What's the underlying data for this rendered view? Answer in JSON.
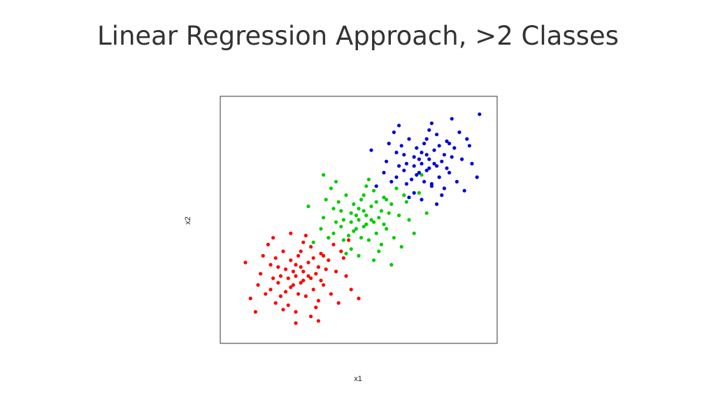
{
  "slide": {
    "title": "Linear Regression Approach, >2 Classes"
  },
  "chart_data": {
    "type": "scatter",
    "title": "",
    "xlabel": "x1",
    "ylabel": "x2",
    "xlim": [
      -3,
      8
    ],
    "ylim": [
      -3,
      8
    ],
    "grid": false,
    "legend": "none",
    "series": [
      {
        "color": "#ff0000",
        "points": [
          [
            0,
            0
          ],
          [
            0.3,
            -0.2
          ],
          [
            -0.4,
            0.3
          ],
          [
            0.5,
            0.6
          ],
          [
            -0.2,
            -0.5
          ],
          [
            0.8,
            0.1
          ],
          [
            -0.7,
            -0.3
          ],
          [
            0.1,
            0.9
          ],
          [
            1.1,
            -0.4
          ],
          [
            -1.0,
            0.5
          ],
          [
            0.4,
            -0.9
          ],
          [
            -0.5,
            1.1
          ],
          [
            1.3,
            0.7
          ],
          [
            -1.2,
            -0.8
          ],
          [
            0.6,
            1.3
          ],
          [
            0.9,
            -1.1
          ],
          [
            -0.3,
            -1.3
          ],
          [
            1.6,
            0.2
          ],
          [
            -1.4,
            0.1
          ],
          [
            0.2,
            0.4
          ],
          [
            -0.1,
            0.2
          ],
          [
            0.7,
            -0.6
          ],
          [
            -0.8,
            0.8
          ],
          [
            1.0,
            1.0
          ],
          [
            -0.6,
            -0.9
          ],
          [
            0.3,
            1.5
          ],
          [
            1.4,
            -0.8
          ],
          [
            -1.5,
            -0.4
          ],
          [
            0.0,
            -1.6
          ],
          [
            1.8,
            1.1
          ],
          [
            -1.1,
            1.4
          ],
          [
            0.5,
            0.0
          ],
          [
            -0.2,
            0.7
          ],
          [
            0.9,
            0.4
          ],
          [
            -0.9,
            -0.1
          ],
          [
            0.2,
            -0.3
          ],
          [
            1.2,
            0.3
          ],
          [
            -0.4,
            -0.7
          ],
          [
            0.6,
            -0.1
          ],
          [
            -0.7,
            0.4
          ],
          [
            0.1,
            -0.8
          ],
          [
            1.5,
            1.4
          ],
          [
            -1.3,
            0.9
          ],
          [
            0.8,
            -1.4
          ],
          [
            -0.5,
            -1.5
          ],
          [
            2.0,
            0.0
          ],
          [
            -1.8,
            -1.0
          ],
          [
            0.4,
            1.8
          ],
          [
            1.7,
            -1.2
          ],
          [
            -0.9,
            1.7
          ],
          [
            0.0,
            0.5
          ],
          [
            0.3,
            0.2
          ],
          [
            -0.3,
            -0.1
          ],
          [
            0.7,
            0.8
          ],
          [
            -0.1,
            -0.4
          ],
          [
            1.0,
            -0.2
          ],
          [
            -0.6,
            0.0
          ],
          [
            0.2,
            1.1
          ],
          [
            1.1,
            0.9
          ],
          [
            -1.0,
            -0.6
          ],
          [
            2.2,
            -0.6
          ],
          [
            -2.0,
            0.6
          ],
          [
            0.6,
            -1.8
          ],
          [
            1.9,
            0.8
          ],
          [
            2.5,
            -1.0
          ],
          [
            -1.6,
            -1.6
          ],
          [
            0.9,
            -2.0
          ],
          [
            2.1,
            1.6
          ],
          [
            -0.2,
            1.9
          ],
          [
            0.0,
            -2.1
          ],
          [
            1.3,
            1.7
          ],
          [
            -0.8,
            -1.2
          ]
        ]
      },
      {
        "color": "#00cc00",
        "points": [
          [
            2.5,
            2.5
          ],
          [
            2.8,
            2.3
          ],
          [
            2.2,
            2.8
          ],
          [
            3.0,
            3.1
          ],
          [
            2.3,
            2.0
          ],
          [
            3.3,
            2.6
          ],
          [
            1.8,
            2.2
          ],
          [
            2.6,
            3.4
          ],
          [
            3.6,
            2.1
          ],
          [
            1.5,
            3.0
          ],
          [
            2.9,
            1.6
          ],
          [
            2.0,
            3.6
          ],
          [
            3.8,
            3.2
          ],
          [
            1.3,
            1.7
          ],
          [
            3.1,
            3.8
          ],
          [
            3.4,
            1.4
          ],
          [
            2.2,
            1.2
          ],
          [
            4.1,
            2.7
          ],
          [
            1.1,
            2.6
          ],
          [
            2.7,
            2.9
          ],
          [
            2.4,
            2.7
          ],
          [
            3.2,
            1.9
          ],
          [
            1.7,
            3.3
          ],
          [
            3.5,
            3.5
          ],
          [
            1.9,
            1.6
          ],
          [
            2.8,
            4.0
          ],
          [
            3.9,
            1.7
          ],
          [
            1.0,
            2.1
          ],
          [
            2.5,
            0.9
          ],
          [
            4.3,
            3.6
          ],
          [
            1.4,
            3.9
          ],
          [
            3.0,
            2.5
          ],
          [
            2.3,
            3.2
          ],
          [
            3.4,
            2.9
          ],
          [
            1.6,
            2.4
          ],
          [
            2.7,
            2.2
          ],
          [
            3.7,
            2.8
          ],
          [
            2.1,
            1.8
          ],
          [
            3.1,
            2.4
          ],
          [
            1.8,
            2.9
          ],
          [
            2.6,
            1.7
          ],
          [
            4.0,
            3.9
          ],
          [
            1.2,
            3.4
          ],
          [
            3.3,
            1.1
          ],
          [
            2.0,
            1.0
          ],
          [
            4.5,
            2.5
          ],
          [
            0.7,
            1.5
          ],
          [
            2.9,
            4.3
          ],
          [
            4.2,
            1.3
          ],
          [
            1.6,
            4.2
          ],
          [
            2.5,
            3.0
          ],
          [
            2.8,
            2.7
          ],
          [
            2.2,
            2.4
          ],
          [
            3.2,
            3.3
          ],
          [
            2.4,
            2.1
          ],
          [
            3.5,
            2.3
          ],
          [
            1.9,
            2.5
          ],
          [
            2.7,
            3.6
          ],
          [
            3.6,
            3.4
          ],
          [
            1.5,
            1.9
          ],
          [
            4.7,
            1.9
          ],
          [
            0.5,
            3.1
          ],
          [
            3.1,
            0.7
          ],
          [
            4.4,
            3.3
          ],
          [
            5.2,
            2.8
          ],
          [
            4.9,
            3.7
          ],
          [
            3.8,
            0.5
          ],
          [
            1.1,
            4.5
          ],
          [
            5.0,
            4.5
          ]
        ]
      },
      {
        "color": "#0000dd",
        "points": [
          [
            5,
            5
          ],
          [
            5.3,
            4.8
          ],
          [
            4.7,
            5.3
          ],
          [
            5.5,
            5.6
          ],
          [
            4.8,
            4.5
          ],
          [
            5.8,
            5.1
          ],
          [
            4.3,
            4.7
          ],
          [
            5.1,
            5.9
          ],
          [
            6.1,
            4.6
          ],
          [
            4.0,
            5.5
          ],
          [
            5.4,
            4.1
          ],
          [
            4.5,
            6.1
          ],
          [
            6.3,
            5.7
          ],
          [
            3.8,
            4.2
          ],
          [
            5.6,
            6.3
          ],
          [
            5.9,
            3.9
          ],
          [
            4.7,
            3.7
          ],
          [
            6.6,
            5.2
          ],
          [
            3.6,
            5.1
          ],
          [
            5.2,
            5.4
          ],
          [
            4.9,
            5.2
          ],
          [
            5.7,
            4.4
          ],
          [
            4.2,
            5.8
          ],
          [
            6.0,
            6.0
          ],
          [
            4.4,
            4.1
          ],
          [
            5.3,
            6.5
          ],
          [
            6.4,
            4.2
          ],
          [
            3.5,
            4.6
          ],
          [
            5.0,
            3.4
          ],
          [
            6.8,
            6.1
          ],
          [
            3.9,
            6.4
          ],
          [
            5.5,
            5.0
          ],
          [
            4.8,
            5.7
          ],
          [
            5.9,
            5.4
          ],
          [
            4.1,
            4.9
          ],
          [
            5.2,
            4.7
          ],
          [
            6.2,
            5.3
          ],
          [
            4.6,
            4.3
          ],
          [
            5.6,
            4.9
          ],
          [
            4.3,
            5.4
          ],
          [
            5.1,
            4.2
          ],
          [
            6.5,
            6.4
          ],
          [
            3.7,
            5.9
          ],
          [
            5.8,
            3.6
          ],
          [
            4.5,
            3.5
          ],
          [
            7.0,
            5.0
          ],
          [
            3.2,
            4.0
          ],
          [
            5.4,
            6.8
          ],
          [
            6.7,
            3.8
          ],
          [
            4.1,
            6.7
          ],
          [
            5.0,
            5.5
          ],
          [
            5.3,
            5.2
          ],
          [
            4.7,
            4.9
          ],
          [
            5.7,
            5.8
          ],
          [
            4.9,
            4.6
          ],
          [
            6.0,
            4.8
          ],
          [
            4.4,
            5.0
          ],
          [
            5.2,
            6.1
          ],
          [
            6.1,
            5.9
          ],
          [
            4.0,
            4.4
          ],
          [
            7.2,
            4.4
          ],
          [
            3.0,
            5.6
          ],
          [
            5.6,
            3.2
          ],
          [
            6.9,
            5.8
          ],
          [
            7.3,
            7.2
          ],
          [
            6.2,
            7.0
          ],
          [
            5.4,
            4.0
          ]
        ]
      }
    ]
  }
}
